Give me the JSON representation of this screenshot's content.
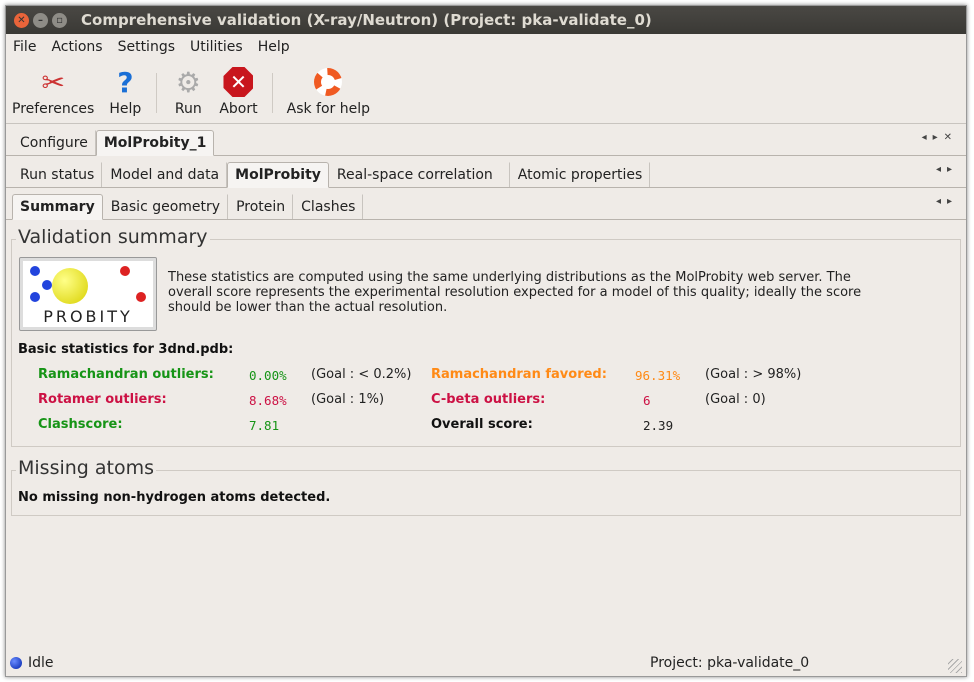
{
  "window": {
    "title": "Comprehensive validation (X-ray/Neutron) (Project: pka-validate_0)"
  },
  "menu": [
    "File",
    "Actions",
    "Settings",
    "Utilities",
    "Help"
  ],
  "toolbar": [
    {
      "label": "Preferences",
      "icon": "tools-icon"
    },
    {
      "label": "Help",
      "icon": "question-icon"
    },
    {
      "label": "Run",
      "icon": "gear-icon"
    },
    {
      "label": "Abort",
      "icon": "stop-icon"
    },
    {
      "label": "Ask for help",
      "icon": "lifebuoy-icon"
    }
  ],
  "tabs1": [
    "Configure",
    "MolProbity_1"
  ],
  "tabs2": [
    "Run status",
    "Model and data",
    "MolProbity",
    "Real-space correlation",
    "Atomic properties"
  ],
  "tabs3": [
    "Summary",
    "Basic geometry",
    "Protein",
    "Clashes"
  ],
  "summary": {
    "title": "Validation summary",
    "logo": "MOL PROBITY",
    "description": "These statistics are computed using the same underlying distributions as the MolProbity web server.  The overall score represents the experimental resolution expected for a model of this quality; ideally the score should be lower than the actual resolution.",
    "stats_title": "Basic statistics for 3dnd.pdb:",
    "stats": {
      "rama_out": {
        "label": "Ramachandran outliers:",
        "value": "0.00%",
        "goal": "(Goal : < 0.2%)"
      },
      "rama_fav": {
        "label": "Ramachandran favored:",
        "value": "96.31%",
        "goal": "(Goal : > 98%)"
      },
      "rota": {
        "label": "Rotamer outliers:",
        "value": "8.68%",
        "goal": "(Goal : 1%)"
      },
      "cbeta": {
        "label": "C-beta outliers:",
        "value": "6",
        "goal": "(Goal : 0)"
      },
      "clash": {
        "label": "Clashscore:",
        "value": "7.81"
      },
      "overall": {
        "label": "Overall score:",
        "value": "2.39"
      }
    },
    "colors": {
      "good": "#169416",
      "warn": "#ff8a16",
      "bad": "#cc1144"
    }
  },
  "missing": {
    "title": "Missing atoms",
    "text": "No missing non-hydrogen atoms detected."
  },
  "status": {
    "state": "Idle",
    "project": "Project: pka-validate_0"
  }
}
